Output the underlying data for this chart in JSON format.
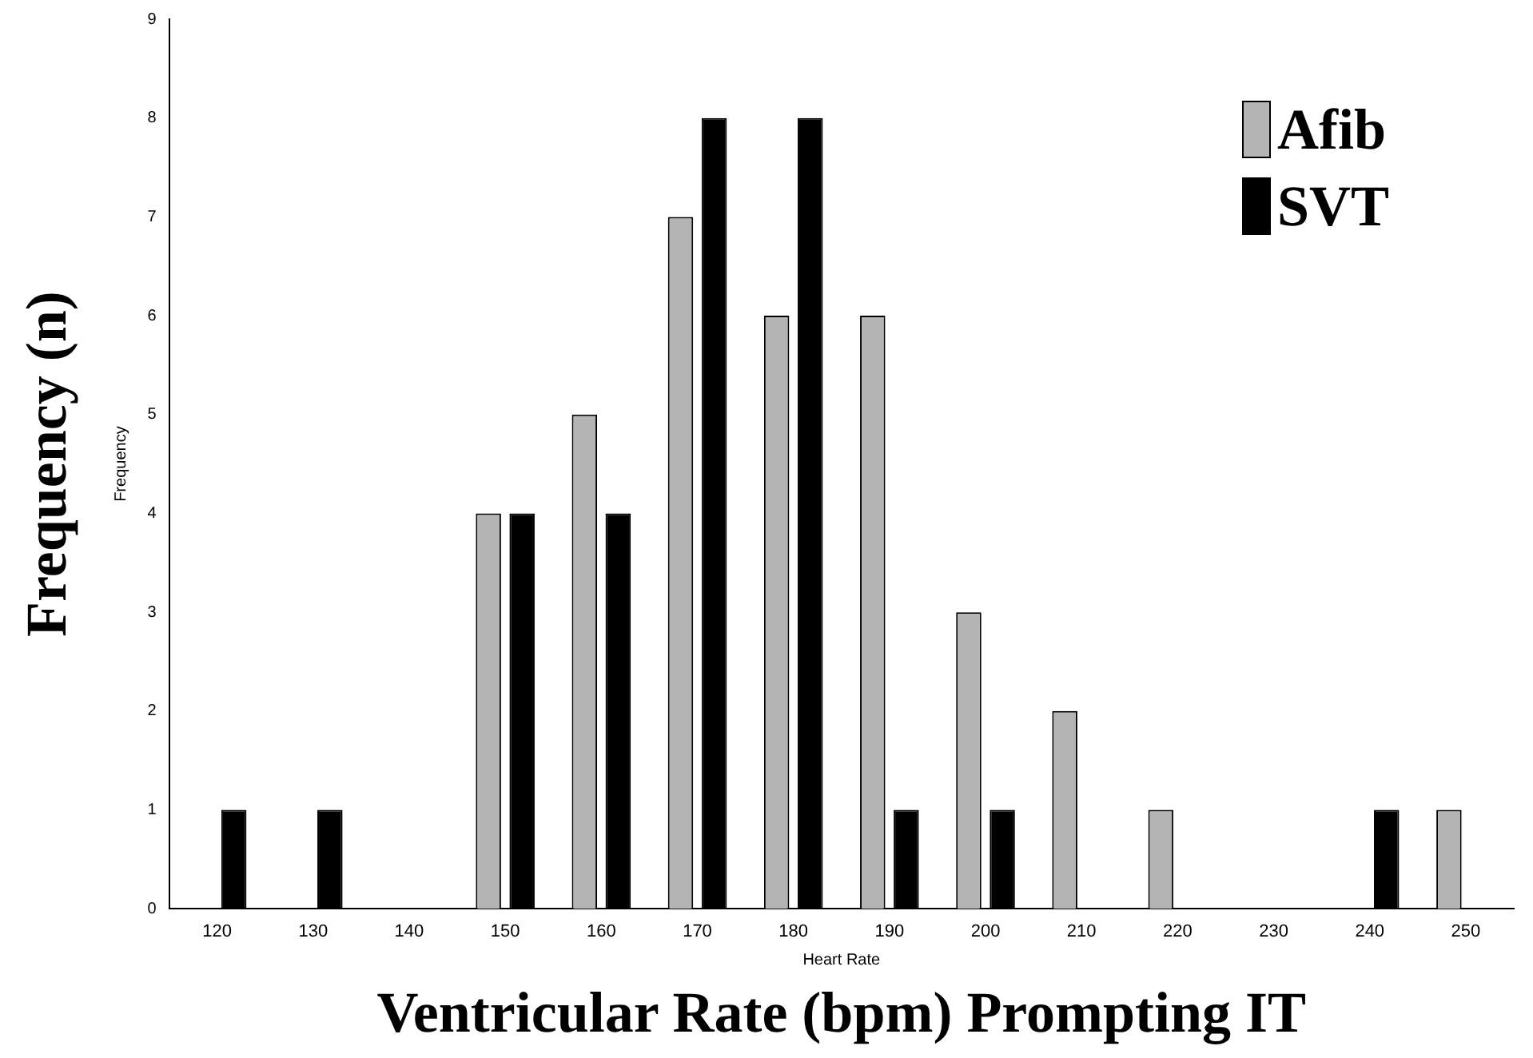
{
  "chart_data": {
    "type": "bar",
    "xlabel": "Ventricular Rate (bpm) Prompting IT",
    "ylabel": "Frequency (n)",
    "annotations": [
      "Frequency",
      "Heart Rate"
    ],
    "categories": [
      "120",
      "130",
      "140",
      "150",
      "160",
      "170",
      "180",
      "190",
      "200",
      "210",
      "220",
      "230",
      "240",
      "250"
    ],
    "series": [
      {
        "name": "Afib",
        "color": "#b4b4b4",
        "values": [
          0,
          0,
          0,
          4,
          5,
          7,
          6,
          6,
          3,
          2,
          1,
          0,
          0,
          1
        ]
      },
      {
        "name": "SVT",
        "color": "#000000",
        "values": [
          1,
          1,
          0,
          4,
          4,
          8,
          8,
          1,
          1,
          0,
          0,
          0,
          1,
          0
        ]
      }
    ],
    "ylim": [
      0,
      9
    ],
    "yticks": [
      0,
      1,
      2,
      3,
      4,
      5,
      6,
      7,
      8,
      9
    ],
    "grid": false,
    "legend": "top right"
  }
}
